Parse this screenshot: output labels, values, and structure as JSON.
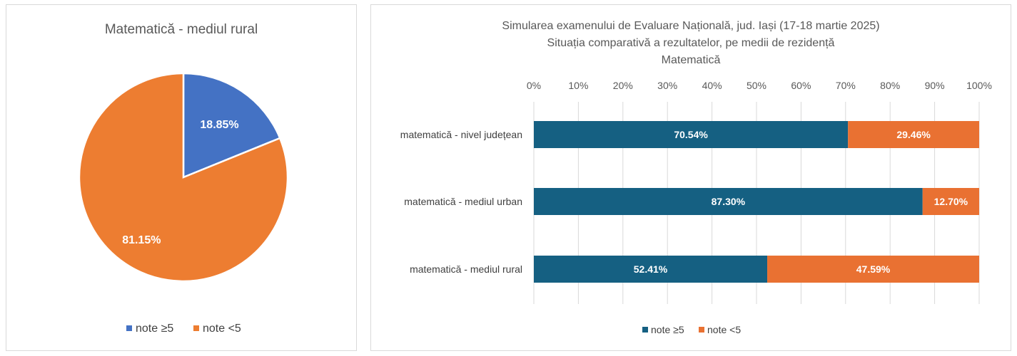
{
  "colors": {
    "pie_ge5": "#4472c4",
    "pie_lt5": "#ed7d31",
    "bar_ge5": "#156082",
    "bar_lt5": "#e97132",
    "grid": "#d9d9d9"
  },
  "chart_data": [
    {
      "type": "pie",
      "title": "Matematică - mediul rural",
      "slices": [
        {
          "label": "note ≥5",
          "value": 18.85,
          "display": "18.85%",
          "color": "#4472c4"
        },
        {
          "label": "note <5",
          "value": 81.15,
          "display": "81.15%",
          "color": "#ed7d31"
        }
      ],
      "legend": [
        "note ≥5",
        "note <5"
      ],
      "legend_position": "bottom"
    },
    {
      "type": "bar",
      "stacked": "percent",
      "orientation": "horizontal",
      "title": [
        "Simularea examenului de Evaluare Națională, jud. Iași (17-18 martie 2025)",
        "Situația comparativă a rezultatelor, pe medii de rezidență",
        "Matematică"
      ],
      "xticks": [
        "0%",
        "10%",
        "20%",
        "30%",
        "40%",
        "50%",
        "60%",
        "70%",
        "80%",
        "90%",
        "100%"
      ],
      "xlim": [
        0,
        100
      ],
      "grid": true,
      "categories": [
        "matematică - nivel județean",
        "matematică - mediul urban",
        "matematică - mediul rural"
      ],
      "series": [
        {
          "name": "note ≥5",
          "values": [
            70.54,
            87.3,
            52.41
          ],
          "labels": [
            "70.54%",
            "87.30%",
            "52.41%"
          ],
          "color": "#156082"
        },
        {
          "name": "note <5",
          "values": [
            29.46,
            12.7,
            47.59
          ],
          "labels": [
            "29.46%",
            "12.70%",
            "47.59%"
          ],
          "color": "#e97132"
        }
      ],
      "legend_position": "bottom"
    }
  ]
}
